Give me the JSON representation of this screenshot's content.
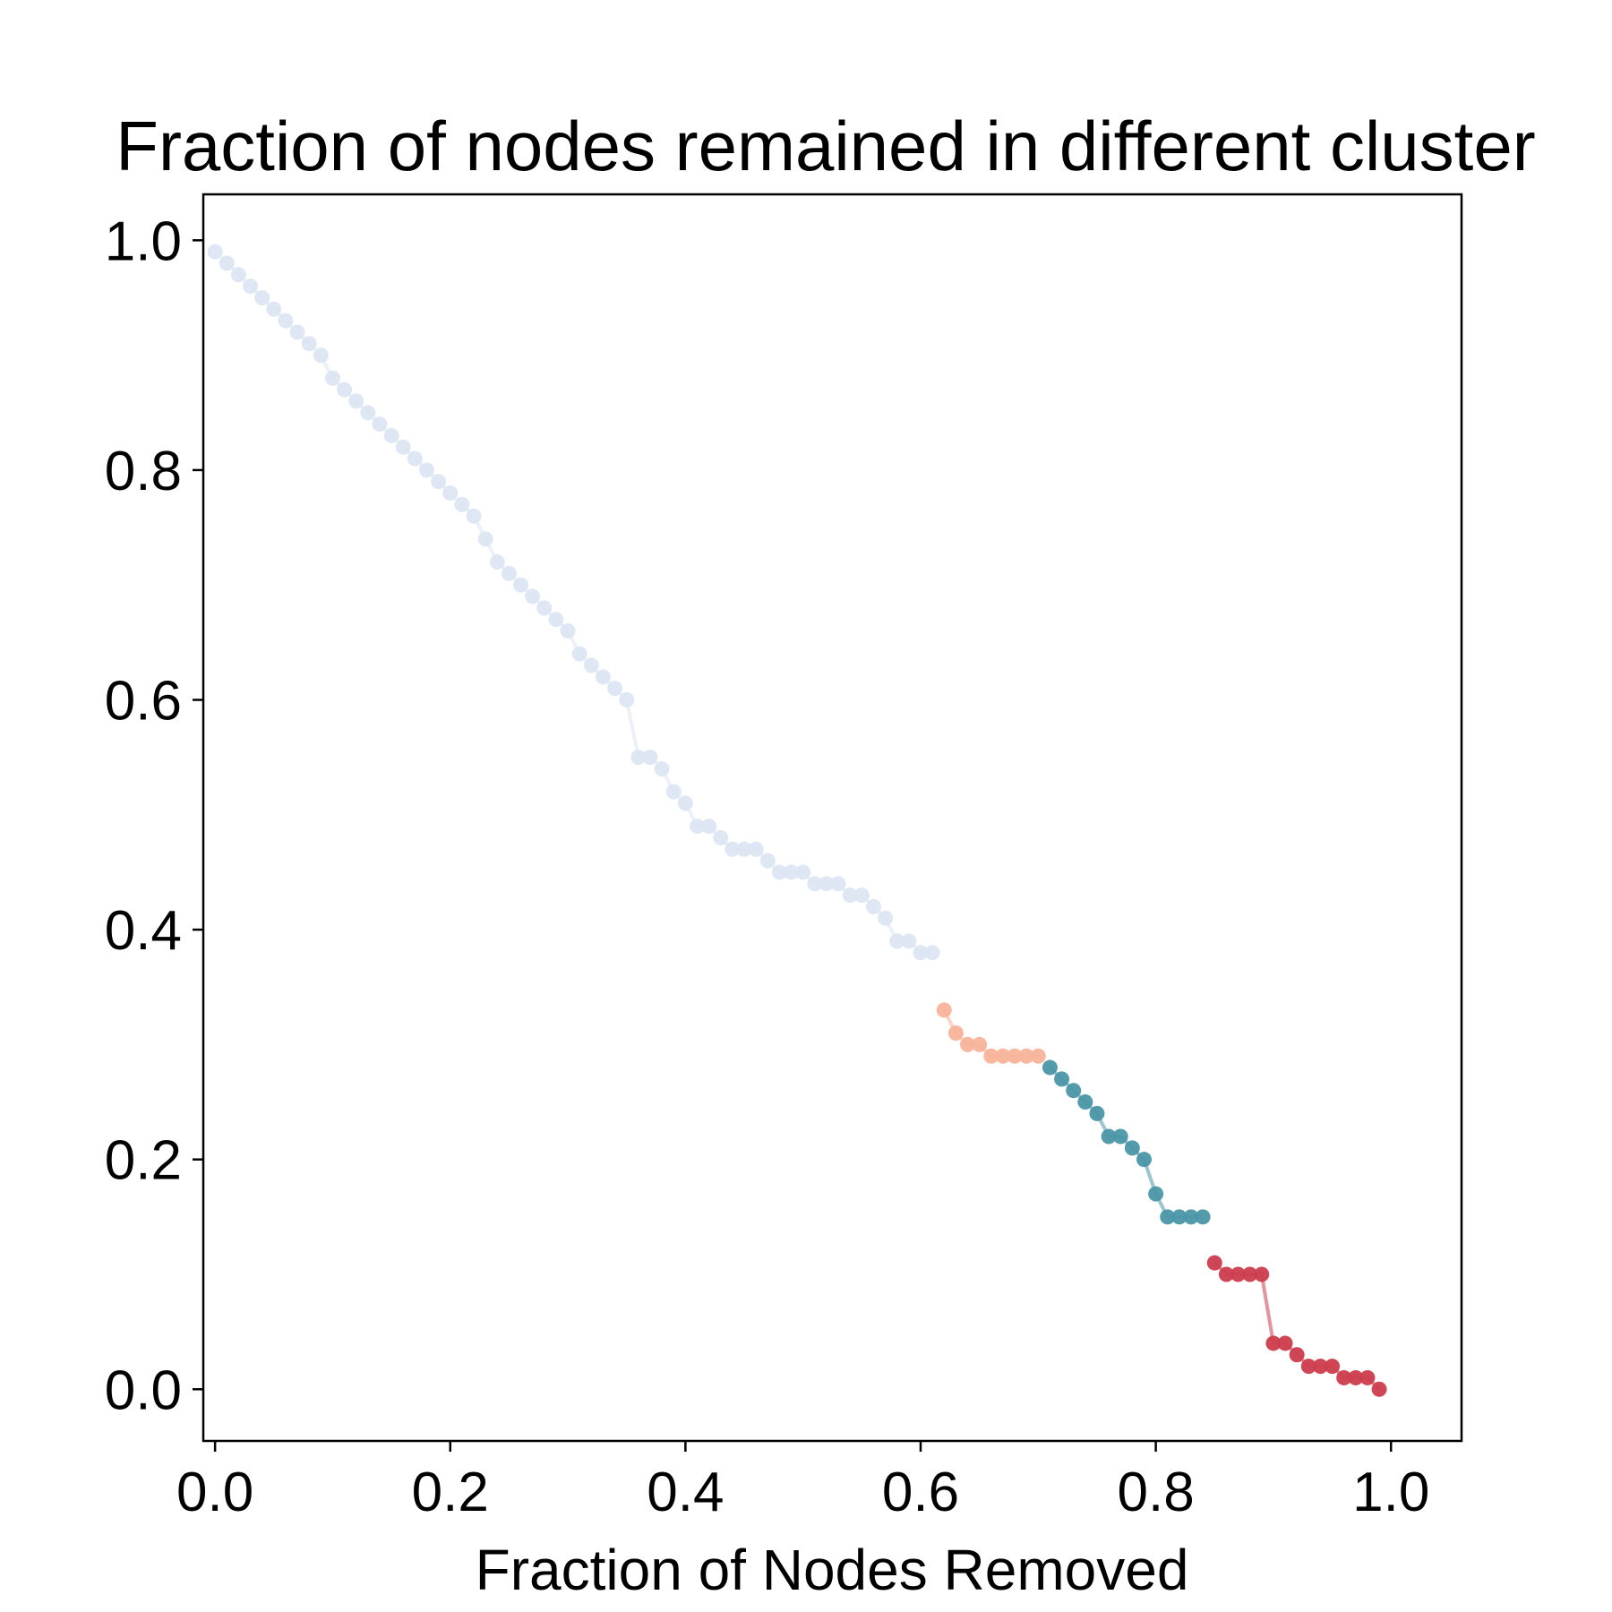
{
  "chart_data": {
    "type": "line",
    "title": "Fraction of nodes remained in different cluster",
    "xlabel": "Fraction of Nodes Removed",
    "ylabel": "",
    "xlim": [
      -0.01,
      1.06
    ],
    "ylim": [
      -0.045,
      1.04
    ],
    "xticks": [
      "0.0",
      "0.2",
      "0.4",
      "0.6",
      "0.8",
      "1.0"
    ],
    "yticks": [
      "0.0",
      "0.2",
      "0.4",
      "0.6",
      "0.8",
      "1.0"
    ],
    "grid": false,
    "legend": "none",
    "series": [
      {
        "color": "#dce6f2",
        "x": [
          0.0,
          0.01,
          0.02,
          0.03,
          0.04,
          0.05,
          0.06,
          0.07,
          0.08,
          0.09,
          0.1,
          0.11,
          0.12,
          0.13,
          0.14,
          0.15,
          0.16,
          0.17,
          0.18,
          0.19,
          0.2,
          0.21,
          0.22,
          0.23,
          0.24,
          0.25,
          0.26,
          0.27,
          0.28,
          0.29,
          0.3,
          0.31,
          0.32,
          0.33,
          0.34,
          0.35,
          0.36,
          0.37,
          0.38,
          0.39,
          0.4,
          0.41,
          0.42,
          0.43,
          0.44,
          0.45,
          0.46,
          0.47,
          0.48,
          0.49,
          0.5,
          0.51,
          0.52,
          0.53,
          0.54,
          0.55,
          0.56,
          0.57,
          0.58,
          0.59,
          0.6,
          0.61
        ],
        "y": [
          0.99,
          0.98,
          0.97,
          0.96,
          0.95,
          0.94,
          0.93,
          0.92,
          0.91,
          0.9,
          0.88,
          0.87,
          0.86,
          0.85,
          0.84,
          0.83,
          0.82,
          0.81,
          0.8,
          0.79,
          0.78,
          0.77,
          0.76,
          0.74,
          0.72,
          0.71,
          0.7,
          0.69,
          0.68,
          0.67,
          0.66,
          0.64,
          0.63,
          0.62,
          0.61,
          0.6,
          0.55,
          0.55,
          0.54,
          0.52,
          0.51,
          0.49,
          0.49,
          0.48,
          0.47,
          0.47,
          0.47,
          0.46,
          0.45,
          0.45,
          0.45,
          0.44,
          0.44,
          0.44,
          0.43,
          0.43,
          0.42,
          0.41,
          0.39,
          0.39,
          0.38,
          0.38
        ]
      },
      {
        "color": "#f7b49a",
        "x": [
          0.62,
          0.63,
          0.64,
          0.65,
          0.66,
          0.67,
          0.68,
          0.69,
          0.7
        ],
        "y": [
          0.33,
          0.31,
          0.3,
          0.3,
          0.29,
          0.29,
          0.29,
          0.29,
          0.29
        ]
      },
      {
        "color": "#4b96a8",
        "x": [
          0.71,
          0.72,
          0.73,
          0.74,
          0.75,
          0.76,
          0.77,
          0.78,
          0.79,
          0.8,
          0.81,
          0.82,
          0.83,
          0.84
        ],
        "y": [
          0.28,
          0.27,
          0.26,
          0.25,
          0.24,
          0.22,
          0.22,
          0.21,
          0.2,
          0.17,
          0.15,
          0.15,
          0.15,
          0.15
        ]
      },
      {
        "color": "#cc3d4d",
        "x": [
          0.85,
          0.86,
          0.87,
          0.88,
          0.89,
          0.9,
          0.91,
          0.92,
          0.93,
          0.94,
          0.95,
          0.96,
          0.97,
          0.98,
          0.99
        ],
        "y": [
          0.11,
          0.1,
          0.1,
          0.1,
          0.1,
          0.04,
          0.04,
          0.03,
          0.02,
          0.02,
          0.02,
          0.01,
          0.01,
          0.01,
          0.0
        ]
      }
    ]
  }
}
